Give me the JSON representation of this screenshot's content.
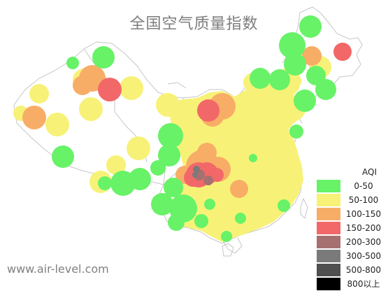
{
  "title": "全国空气质量指数",
  "site": "www.air-level.com",
  "legend": {
    "title": "AQI",
    "items": [
      {
        "label": "0-50",
        "color": "#67f267"
      },
      {
        "label": "50-100",
        "color": "#f7f277"
      },
      {
        "label": "100-150",
        "color": "#f8ad67"
      },
      {
        "label": "150-200",
        "color": "#f26868"
      },
      {
        "label": "200-300",
        "color": "#a67070"
      },
      {
        "label": "300-500",
        "color": "#7a7a7a"
      },
      {
        "label": "500-800",
        "color": "#4f4f4f"
      },
      {
        "label": "800以上",
        "color": "#000000"
      }
    ]
  },
  "colors": {
    "border": "#c2c2c2",
    "background": "#ffffff"
  }
}
